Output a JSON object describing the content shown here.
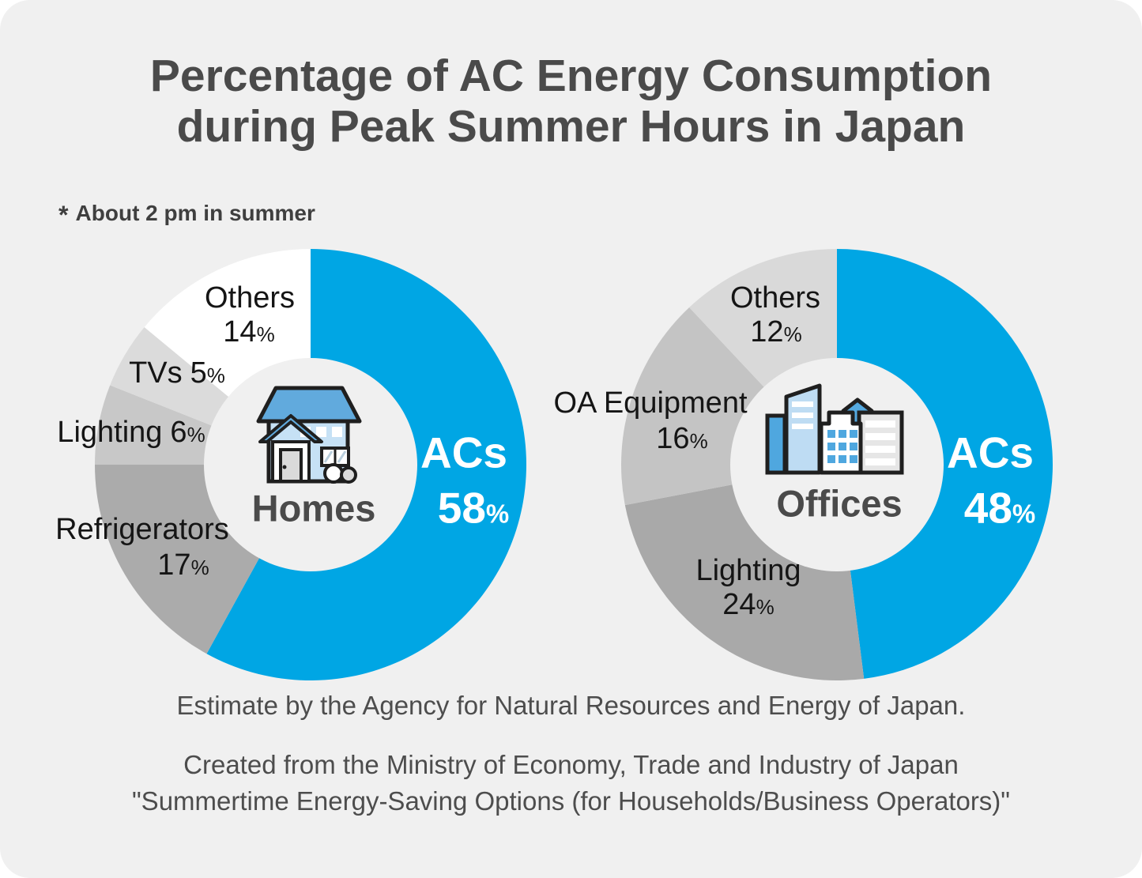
{
  "title": {
    "line1": "Percentage of AC Energy Consumption",
    "line2": "during Peak Summer Hours in Japan"
  },
  "note": {
    "symbol": "*",
    "text": "About 2 pm in summer"
  },
  "unit": "%",
  "chart_data": [
    {
      "type": "pie",
      "subtype": "donut",
      "id": "homes",
      "center_label": "Homes",
      "center_icon": "house-icon",
      "start_angle_deg": 0,
      "direction": "clockwise",
      "hole_ratio": 0.4945,
      "segments": [
        {
          "label": "ACs",
          "value": 58,
          "color": "#00A6E4",
          "text_color": "#FFFFFF"
        },
        {
          "label": "Refrigerators",
          "value": 17,
          "color": "#ABABAB",
          "text_color": "#151515"
        },
        {
          "label": "Lighting",
          "value": 6,
          "color": "#C8C8C8",
          "text_color": "#151515"
        },
        {
          "label": "TVs",
          "value": 5,
          "color": "#DBDBDB",
          "text_color": "#151515"
        },
        {
          "label": "Others",
          "value": 14,
          "color": "#FFFFFF",
          "text_color": "#151515"
        }
      ]
    },
    {
      "type": "pie",
      "subtype": "donut",
      "id": "offices",
      "center_label": "Offices",
      "center_icon": "buildings-icon",
      "start_angle_deg": 0,
      "direction": "clockwise",
      "hole_ratio": 0.4945,
      "segments": [
        {
          "label": "ACs",
          "value": 48,
          "color": "#00A6E4",
          "text_color": "#FFFFFF"
        },
        {
          "label": "Lighting",
          "value": 24,
          "color": "#A9A9A9",
          "text_color": "#151515"
        },
        {
          "label": "OA Equipment",
          "value": 16,
          "color": "#C4C4C4",
          "text_color": "#151515"
        },
        {
          "label": "Others",
          "value": 12,
          "color": "#D9D9D9",
          "text_color": "#151515"
        }
      ]
    }
  ],
  "footer": {
    "line1": "Estimate by the Agency for Natural Resources and Energy of Japan.",
    "line2": "Created from the Ministry of Economy, Trade and Industry of Japan",
    "line3": "\"Summertime Energy-Saving Options (for Households/Business Operators)\""
  },
  "colors": {
    "accent_blue": "#00A6E4",
    "card_bg": "#F0F0F0",
    "title_text": "#4A4A4A",
    "label_text": "#151515",
    "footer_text": "#4D4D4D"
  }
}
